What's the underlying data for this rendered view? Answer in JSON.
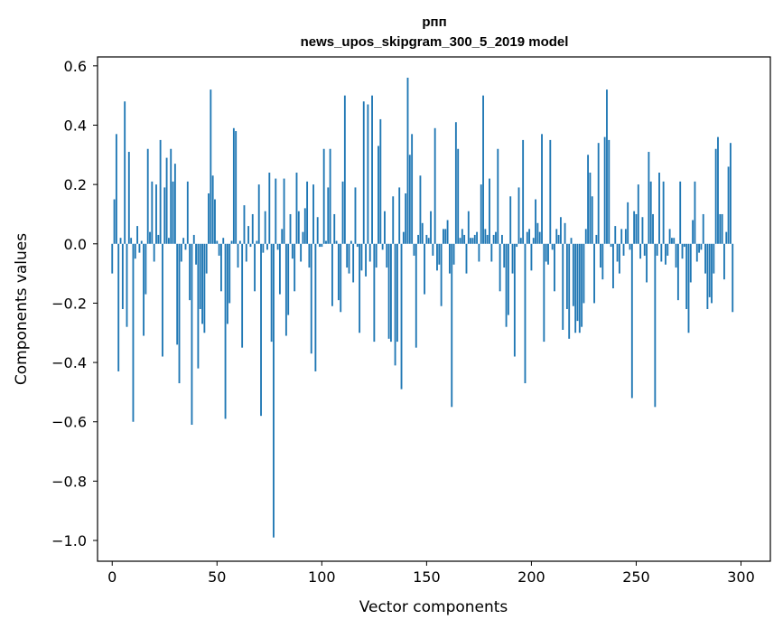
{
  "chart_data": {
    "type": "bar",
    "title": "рпп",
    "subtitle": "news_upos_skipgram_300_5_2019 model",
    "xlabel": "Vector components",
    "ylabel": "Components values",
    "xlim": [
      -7,
      314
    ],
    "ylim": [
      -1.07,
      0.63
    ],
    "xticks": [
      0,
      50,
      100,
      150,
      200,
      250,
      300
    ],
    "xtick_labels": [
      "0",
      "50",
      "100",
      "150",
      "200",
      "250",
      "300"
    ],
    "yticks": [
      -1.0,
      -0.8,
      -0.6,
      -0.4,
      -0.2,
      0.0,
      0.2,
      0.4,
      0.6
    ],
    "ytick_labels": [
      "−1.0",
      "−0.8",
      "−0.6",
      "−0.4",
      "−0.2",
      "0.0",
      "0.2",
      "0.4",
      "0.6"
    ],
    "grid": false,
    "bar_color": "#1f77b4",
    "values": [
      -0.1,
      0.15,
      0.37,
      -0.43,
      0.02,
      -0.22,
      0.48,
      -0.28,
      0.31,
      0.02,
      -0.6,
      -0.05,
      0.06,
      -0.03,
      0.01,
      -0.31,
      -0.17,
      0.32,
      0.04,
      0.21,
      -0.06,
      0.2,
      0.03,
      0.35,
      -0.38,
      0.19,
      0.29,
      0.02,
      0.32,
      0.21,
      0.27,
      -0.34,
      -0.47,
      -0.06,
      0.02,
      -0.02,
      0.21,
      -0.19,
      -0.61,
      0.03,
      -0.07,
      -0.42,
      -0.22,
      -0.27,
      -0.3,
      -0.1,
      0.17,
      0.52,
      0.23,
      0.15,
      0.01,
      -0.04,
      -0.16,
      0.02,
      -0.59,
      -0.27,
      -0.2,
      0.01,
      0.39,
      0.38,
      -0.08,
      0.01,
      -0.35,
      0.13,
      -0.06,
      0.06,
      -0.01,
      0.1,
      -0.16,
      0.01,
      0.2,
      -0.58,
      -0.03,
      0.11,
      -0.02,
      0.24,
      -0.33,
      -0.99,
      0.22,
      -0.02,
      -0.17,
      0.05,
      0.22,
      -0.31,
      -0.24,
      0.1,
      -0.05,
      -0.16,
      0.24,
      0.11,
      -0.06,
      0.04,
      0.12,
      0.21,
      -0.08,
      -0.37,
      0.2,
      -0.43,
      0.09,
      -0.01,
      -0.01,
      0.32,
      0.01,
      0.19,
      0.32,
      -0.21,
      0.1,
      0.01,
      -0.19,
      -0.23,
      0.21,
      0.5,
      -0.08,
      -0.1,
      0.01,
      -0.13,
      0.19,
      -0.01,
      -0.3,
      -0.09,
      0.48,
      -0.11,
      0.47,
      -0.06,
      0.5,
      -0.33,
      -0.08,
      0.33,
      0.42,
      -0.02,
      0.11,
      -0.08,
      -0.32,
      -0.33,
      0.16,
      -0.41,
      -0.33,
      0.19,
      -0.49,
      0.04,
      0.17,
      0.56,
      0.3,
      0.37,
      -0.04,
      -0.35,
      0.03,
      0.23,
      0.07,
      -0.17,
      0.03,
      0.02,
      0.11,
      -0.04,
      0.39,
      -0.09,
      -0.07,
      -0.21,
      0.05,
      0.05,
      0.08,
      -0.1,
      -0.55,
      -0.07,
      0.41,
      0.32,
      0.02,
      0.05,
      0.03,
      -0.1,
      0.11,
      0.02,
      0.02,
      0.03,
      0.04,
      -0.06,
      0.2,
      0.5,
      0.05,
      0.03,
      0.22,
      -0.06,
      0.03,
      0.04,
      0.32,
      -0.16,
      0.03,
      -0.08,
      -0.28,
      -0.24,
      0.16,
      -0.1,
      -0.38,
      -0.01,
      0.19,
      0.02,
      0.35,
      -0.47,
      0.04,
      0.05,
      -0.09,
      0.02,
      0.15,
      0.07,
      0.04,
      0.37,
      -0.33,
      -0.06,
      -0.07,
      0.35,
      -0.02,
      -0.16,
      0.05,
      0.03,
      0.09,
      -0.29,
      0.07,
      -0.22,
      -0.32,
      0.02,
      -0.21,
      -0.3,
      -0.26,
      -0.3,
      -0.28,
      -0.2,
      0.05,
      0.3,
      0.24,
      0.16,
      -0.2,
      0.03,
      0.34,
      -0.08,
      -0.12,
      0.36,
      0.52,
      0.35,
      -0.01,
      -0.15,
      0.06,
      -0.06,
      -0.1,
      0.05,
      -0.04,
      0.05,
      0.14,
      -0.02,
      -0.52,
      0.11,
      0.1,
      0.2,
      -0.05,
      0.09,
      -0.04,
      -0.13,
      0.31,
      0.21,
      0.1,
      -0.55,
      -0.04,
      0.24,
      -0.06,
      0.21,
      -0.07,
      -0.04,
      0.05,
      0.02,
      0.02,
      -0.08,
      -0.19,
      0.21,
      -0.05,
      -0.01,
      -0.22,
      -0.3,
      -0.13,
      0.08,
      0.21,
      -0.06,
      -0.03,
      -0.02,
      0.1,
      -0.1,
      -0.22,
      -0.18,
      -0.2,
      -0.1,
      0.32,
      0.36,
      0.1,
      0.1,
      -0.12,
      0.04,
      0.26,
      0.34,
      -0.23
    ]
  }
}
